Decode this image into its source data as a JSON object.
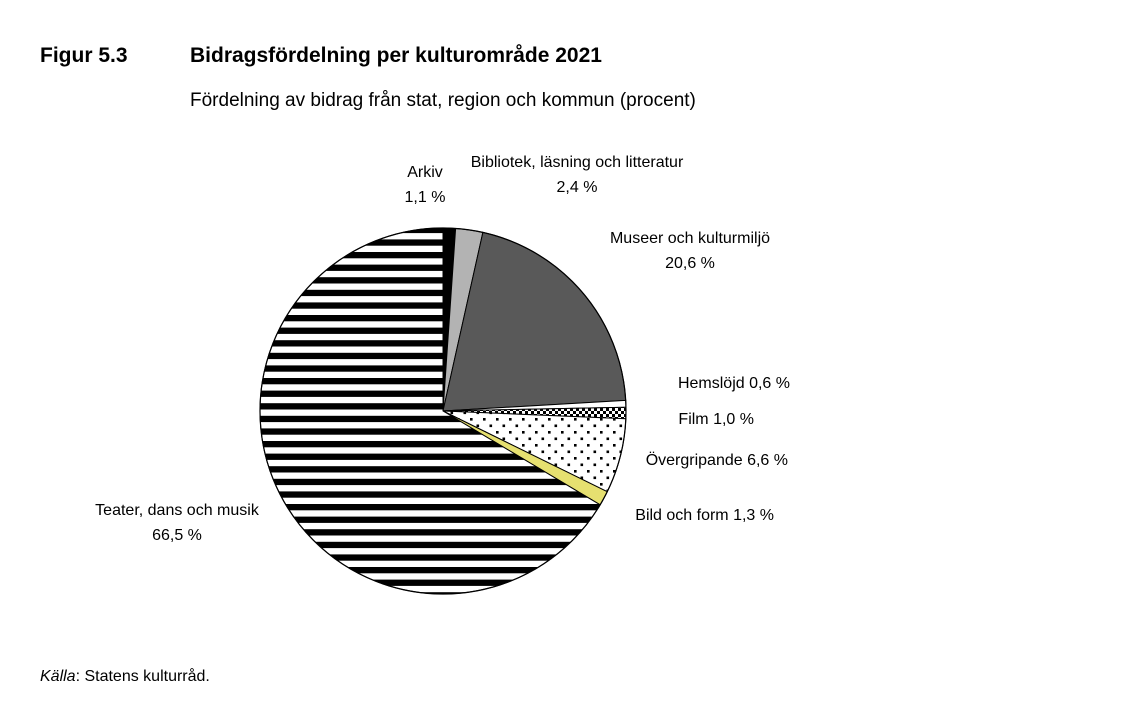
{
  "figure": {
    "number": "Figur 5.3",
    "title": "Bidragsfördelning per kulturområde 2021",
    "subtitle": "Fördelning av bidrag från stat, region och kommun (procent)"
  },
  "source": {
    "prefix": "Källa",
    "text": ": Statens kulturråd."
  },
  "chart_data": {
    "type": "pie",
    "start_angle_deg": 0,
    "direction": "clockwise",
    "slices": [
      {
        "key": "arkiv",
        "label": [
          "Arkiv",
          "1,1 %"
        ],
        "value": 1.1,
        "fill": "#000000",
        "pattern": "solid"
      },
      {
        "key": "bibliotek",
        "label": [
          "Bibliotek, läsning och litteratur",
          "2,4 %"
        ],
        "value": 2.4,
        "fill": "#b3b3b3",
        "pattern": "solid"
      },
      {
        "key": "museer",
        "label": [
          "Museer och kulturmiljö",
          "20,6 %"
        ],
        "value": 20.6,
        "fill": "#595959",
        "pattern": "solid"
      },
      {
        "key": "hemslojd",
        "label": [
          "Hemslöjd 0,6 %"
        ],
        "value": 0.6,
        "fill": "#ffffff",
        "pattern": "solid"
      },
      {
        "key": "film",
        "label": [
          "Film 1,0 %"
        ],
        "value": 1.0,
        "fill": "#000000",
        "pattern": "checker"
      },
      {
        "key": "overgripande",
        "label": [
          "Övergripande 6,6 %"
        ],
        "value": 6.6,
        "fill": "#000000",
        "pattern": "dots"
      },
      {
        "key": "bild",
        "label": [
          "Bild och form 1,3 %"
        ],
        "value": 1.3,
        "fill": "#e6e070",
        "pattern": "solid"
      },
      {
        "key": "teater",
        "label": [
          "Teater, dans och musik",
          "66,5 %"
        ],
        "value": 66.5,
        "fill": "#000000",
        "pattern": "stripes"
      }
    ]
  }
}
